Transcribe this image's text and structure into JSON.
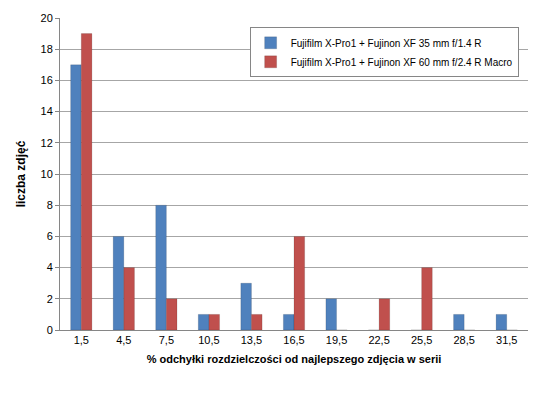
{
  "chart_data": {
    "type": "bar",
    "x_label": "% odchyłki rozdzielczości od najlepszego zdjęcia w serii",
    "y_label": "liczba zdjęć",
    "categories": [
      "1,5",
      "4,5",
      "7,5",
      "10,5",
      "13,5",
      "16,5",
      "19,5",
      "22,5",
      "25,5",
      "28,5",
      "31,5"
    ],
    "series": [
      {
        "name": "Fujifilm X-Pro1 + Fujinon XF 35 mm f/1.4 R",
        "color": "#4f81bd",
        "values": [
          17,
          6,
          8,
          1,
          3,
          1,
          2,
          0,
          0,
          1,
          1
        ]
      },
      {
        "name": "Fujifilm X-Pro1 + Fujinon XF 60 mm f/2.4 R Macro",
        "color": "#c0504d",
        "values": [
          19,
          4,
          2,
          1,
          1,
          6,
          0,
          2,
          4,
          0,
          0
        ]
      }
    ],
    "ylim": [
      0,
      20
    ],
    "yticks": [
      0,
      2,
      4,
      6,
      8,
      10,
      12,
      14,
      16,
      18,
      20
    ],
    "grid": true,
    "legend": "top right"
  }
}
